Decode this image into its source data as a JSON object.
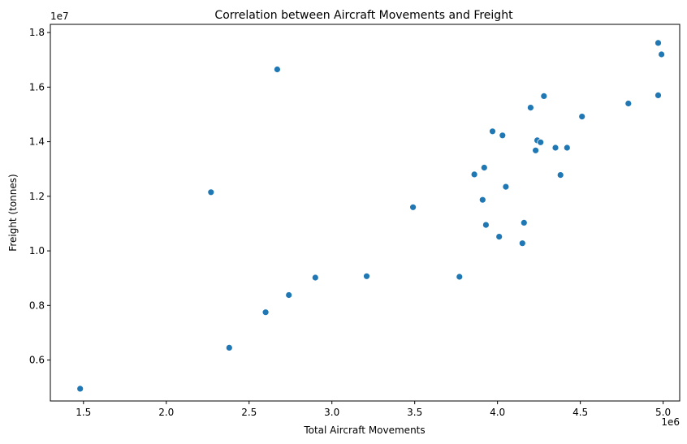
{
  "chart_data": {
    "type": "scatter",
    "title": "Correlation between Aircraft Movements and Freight",
    "xlabel": "Total Aircraft Movements",
    "ylabel": "Freight (tonnes)",
    "x_offset_label": "1e6",
    "y_offset_label": "1e7",
    "xlim": [
      1.3,
      5.1
    ],
    "ylim": [
      4.5,
      18.3
    ],
    "x_ticks": [
      1.5,
      2.0,
      2.5,
      3.0,
      3.5,
      4.0,
      4.5,
      5.0
    ],
    "x_tick_labels": [
      "1.5",
      "2.0",
      "2.5",
      "3.0",
      "3.5",
      "4.0",
      "4.5",
      "5.0"
    ],
    "y_ticks": [
      6,
      8,
      10,
      12,
      14,
      16,
      18
    ],
    "y_tick_labels": [
      "0.6",
      "0.8",
      "1.0",
      "1.2",
      "1.4",
      "1.6",
      "1.8"
    ],
    "grid": false,
    "legend": "none",
    "marker_color": "#1f77b4",
    "points": [
      {
        "x": 1.48,
        "y": 4.95
      },
      {
        "x": 2.27,
        "y": 12.15
      },
      {
        "x": 2.38,
        "y": 6.45
      },
      {
        "x": 2.6,
        "y": 7.75
      },
      {
        "x": 2.67,
        "y": 16.65
      },
      {
        "x": 2.74,
        "y": 8.38
      },
      {
        "x": 2.9,
        "y": 9.02
      },
      {
        "x": 3.21,
        "y": 9.07
      },
      {
        "x": 3.49,
        "y": 11.6
      },
      {
        "x": 3.77,
        "y": 9.05
      },
      {
        "x": 3.86,
        "y": 12.8
      },
      {
        "x": 3.91,
        "y": 11.87
      },
      {
        "x": 3.92,
        "y": 13.05
      },
      {
        "x": 3.93,
        "y": 10.95
      },
      {
        "x": 3.97,
        "y": 14.38
      },
      {
        "x": 4.01,
        "y": 10.52
      },
      {
        "x": 4.03,
        "y": 14.23
      },
      {
        "x": 4.05,
        "y": 12.35
      },
      {
        "x": 4.15,
        "y": 10.28
      },
      {
        "x": 4.16,
        "y": 11.03
      },
      {
        "x": 4.2,
        "y": 15.25
      },
      {
        "x": 4.23,
        "y": 13.68
      },
      {
        "x": 4.24,
        "y": 14.05
      },
      {
        "x": 4.26,
        "y": 13.98
      },
      {
        "x": 4.28,
        "y": 15.67
      },
      {
        "x": 4.35,
        "y": 13.78
      },
      {
        "x": 4.38,
        "y": 12.78
      },
      {
        "x": 4.42,
        "y": 13.78
      },
      {
        "x": 4.51,
        "y": 14.92
      },
      {
        "x": 4.79,
        "y": 15.4
      },
      {
        "x": 4.97,
        "y": 17.62
      },
      {
        "x": 4.97,
        "y": 15.7
      },
      {
        "x": 4.99,
        "y": 17.2
      }
    ]
  }
}
